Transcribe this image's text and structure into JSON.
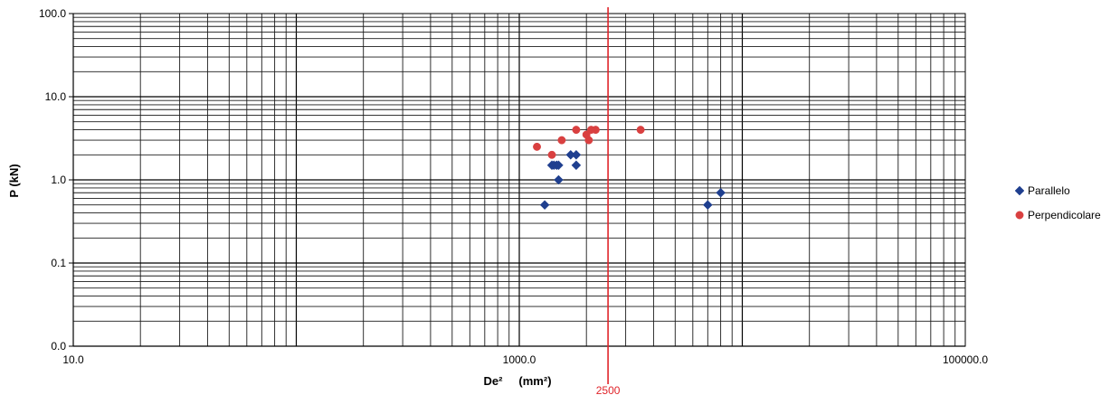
{
  "chart_data": {
    "type": "scatter",
    "title": "",
    "xlabel": "De² (mm²)",
    "xlabel_main": "De²",
    "xlabel_unit": "(mm²)",
    "ylabel": "P (kN)",
    "x_scale": "log",
    "y_scale": "log",
    "xlim": [
      10,
      100000
    ],
    "ylim": [
      0.01,
      100
    ],
    "x_tick_labels": [
      {
        "value": 10,
        "label": "10.0"
      },
      {
        "value": 1000,
        "label": "1000.0"
      },
      {
        "value": 100000,
        "label": "100000.0"
      }
    ],
    "y_tick_labels": [
      {
        "value": 100,
        "label": "100.0"
      },
      {
        "value": 10,
        "label": "10.0"
      },
      {
        "value": 1,
        "label": "1.0"
      },
      {
        "value": 0.1,
        "label": "0.1"
      },
      {
        "value": 0.01,
        "label": "0.0"
      }
    ],
    "grid": true,
    "legend_position": "right",
    "reference_line": {
      "x": 2500,
      "label": "2500",
      "color": "#e0242a"
    },
    "series": [
      {
        "name": "Parallelo",
        "marker": "diamond",
        "color": "#1f3f8f",
        "points": [
          {
            "x": 1300,
            "y": 0.5
          },
          {
            "x": 1400,
            "y": 1.5
          },
          {
            "x": 1430,
            "y": 1.5
          },
          {
            "x": 1470,
            "y": 1.5
          },
          {
            "x": 1500,
            "y": 1.5
          },
          {
            "x": 1500,
            "y": 1.0
          },
          {
            "x": 1700,
            "y": 2.0
          },
          {
            "x": 1800,
            "y": 2.0
          },
          {
            "x": 1800,
            "y": 1.5
          },
          {
            "x": 7000,
            "y": 0.5
          },
          {
            "x": 8000,
            "y": 0.7
          }
        ]
      },
      {
        "name": "Perpendicolare",
        "marker": "circle",
        "color": "#d94040",
        "points": [
          {
            "x": 1200,
            "y": 2.5
          },
          {
            "x": 1400,
            "y": 2.0
          },
          {
            "x": 1550,
            "y": 3.0
          },
          {
            "x": 1800,
            "y": 4.0
          },
          {
            "x": 2000,
            "y": 3.5
          },
          {
            "x": 2050,
            "y": 3.0
          },
          {
            "x": 2100,
            "y": 4.0
          },
          {
            "x": 2200,
            "y": 4.0
          },
          {
            "x": 3500,
            "y": 4.0
          }
        ]
      }
    ]
  }
}
